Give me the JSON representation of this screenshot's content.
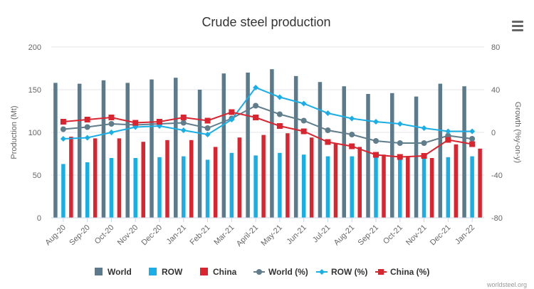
{
  "chart_data": {
    "type": "bar",
    "title": "Crude steel production",
    "ylabel": "Production (Mt)",
    "y2label": "Growth (%y-on-y)",
    "ylim": [
      0,
      200
    ],
    "y2lim": [
      -80,
      80
    ],
    "yticks": [
      0,
      50,
      100,
      150,
      200
    ],
    "y2ticks": [
      -80,
      -40,
      0,
      40,
      80
    ],
    "grid": true,
    "legend_position": "bottom",
    "categories": [
      "Aug-20",
      "Sep-20",
      "Oct-20",
      "Nov-20",
      "Dec-20",
      "Jan-21",
      "Feb-21",
      "Mar-21",
      "April-21",
      "May-21",
      "Jun-21",
      "Jul-21",
      "Aug-21",
      "Sep-21",
      "Oct-21",
      "Nov-21",
      "Dec-21",
      "Jan-22"
    ],
    "series": [
      {
        "name": "World",
        "type": "bar",
        "axis": "left",
        "color": "#5b7a8c",
        "values": [
          158,
          157,
          161,
          158,
          162,
          164,
          150,
          169,
          170,
          174,
          166,
          159,
          154,
          145,
          146,
          142,
          157,
          154
        ]
      },
      {
        "name": "ROW",
        "type": "bar",
        "axis": "left",
        "color": "#1aaee6",
        "values": [
          63,
          65,
          70,
          70,
          71,
          72,
          68,
          76,
          73,
          76,
          74,
          72,
          72,
          72,
          70,
          70,
          71,
          72
        ]
      },
      {
        "name": "China",
        "type": "bar",
        "axis": "left",
        "color": "#d9252f",
        "values": [
          95,
          93,
          93,
          89,
          91,
          91,
          83,
          94,
          97,
          99,
          94,
          87,
          83,
          74,
          72,
          70,
          86,
          81
        ]
      },
      {
        "name": "World (%)",
        "type": "line",
        "axis": "right",
        "color": "#607d8b",
        "marker": "circle",
        "values": [
          3,
          5,
          8,
          7,
          8,
          9,
          4,
          13,
          25,
          17,
          11,
          2,
          -2,
          -8,
          -10,
          -10,
          -3,
          -6
        ]
      },
      {
        "name": "ROW (%)",
        "type": "line",
        "axis": "right",
        "color": "#1aaee6",
        "marker": "diamond",
        "values": [
          -6,
          -5,
          0,
          5,
          6,
          2,
          -2,
          12,
          42,
          33,
          27,
          18,
          13,
          10,
          8,
          4,
          1,
          1
        ]
      },
      {
        "name": "China (%)",
        "type": "line",
        "axis": "right",
        "color": "#d9252f",
        "marker": "square",
        "values": [
          10,
          12,
          14,
          9,
          10,
          14,
          11,
          19,
          14,
          6,
          1,
          -9,
          -13,
          -21,
          -23,
          -22,
          -7,
          -11
        ]
      }
    ]
  },
  "menu": {
    "icon": "hamburger-menu-icon"
  },
  "credit": "worldsteel.org"
}
